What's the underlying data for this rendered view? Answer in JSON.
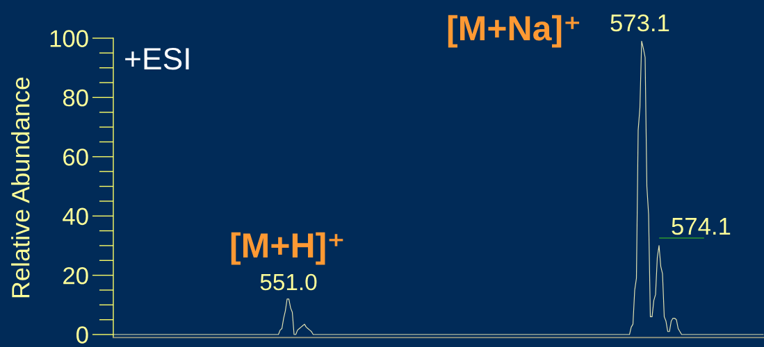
{
  "chart_data": {
    "type": "line",
    "ylabel": "Relative Abundance",
    "categories": [
      null,
      null,
      null,
      null,
      null,
      null,
      null,
      null,
      null,
      null,
      null,
      null,
      null,
      null,
      null,
      null,
      null,
      null,
      null,
      null,
      null,
      null,
      null,
      null,
      null,
      null,
      null,
      null,
      null,
      null,
      null,
      null,
      null,
      null,
      null,
      null,
      null,
      null,
      null,
      null,
      null,
      null,
      null,
      null,
      null,
      null,
      null,
      null,
      null,
      null,
      null,
      null,
      null,
      null,
      null,
      null,
      null,
      null,
      null,
      null,
      null,
      null,
      null,
      null,
      null,
      null,
      null,
      null,
      null,
      null,
      null,
      null,
      null,
      null,
      null,
      null,
      null,
      null,
      null,
      null,
      null,
      null,
      null,
      null,
      null,
      null,
      null,
      null,
      null,
      null,
      null,
      null,
      null,
      null,
      null,
      null,
      null,
      null,
      null,
      null,
      null,
      null,
      null,
      null,
      null,
      null,
      null,
      null,
      null,
      null,
      null,
      null,
      null,
      null,
      null,
      null,
      null,
      null,
      null,
      null,
      null,
      null,
      null,
      null,
      null,
      null,
      null,
      null,
      null,
      null,
      null,
      null,
      null,
      null,
      null,
      null,
      null,
      null,
      null,
      null,
      null,
      null,
      null,
      null,
      null,
      null,
      null,
      null,
      null,
      null,
      null,
      null,
      null,
      null,
      null,
      null,
      null,
      null,
      null,
      null,
      null,
      null,
      null,
      null,
      null,
      null,
      null,
      null,
      null,
      null,
      null,
      null,
      null,
      null,
      null,
      null,
      null,
      null,
      null,
      null,
      null,
      null,
      null,
      null,
      null,
      null,
      null,
      null,
      null,
      null,
      null,
      null,
      null,
      null,
      null,
      null,
      null,
      null,
      null,
      null,
      null,
      null,
      null,
      null,
      null,
      null,
      null,
      null,
      null,
      null,
      null,
      null,
      null,
      null,
      null,
      null,
      null,
      null,
      null,
      null,
      null,
      null,
      null,
      null,
      null,
      null,
      null,
      null,
      null,
      null,
      null,
      null,
      null,
      null,
      null,
      null,
      null,
      null,
      null,
      null,
      null,
      null,
      null,
      null,
      null,
      null,
      null,
      null,
      null,
      null,
      null,
      null,
      null,
      null,
      null,
      null,
      null,
      null,
      null,
      null,
      null,
      null,
      null,
      null,
      null,
      null,
      null,
      null,
      null,
      null,
      null,
      null,
      null,
      null,
      null,
      null,
      null,
      null,
      null,
      null,
      null,
      null,
      null,
      null,
      null,
      null,
      null,
      null,
      null,
      null,
      null,
      null,
      null,
      null,
      null,
      null,
      null,
      null,
      null,
      null,
      null,
      null,
      null,
      null,
      null,
      null,
      null,
      null,
      null,
      null,
      null,
      null,
      null,
      null,
      null,
      null,
      null,
      null,
      null,
      null,
      null,
      null,
      null,
      null,
      null,
      null,
      null,
      null,
      null,
      null,
      null,
      null,
      null,
      null,
      null,
      null,
      null,
      null,
      null,
      null,
      null,
      null,
      null,
      null,
      null,
      null,
      null,
      null,
      null,
      null,
      null,
      null,
      null,
      null,
      null,
      null,
      null,
      null,
      null,
      null,
      null,
      null,
      null,
      null,
      null,
      null,
      null,
      null,
      null,
      null,
      null,
      null,
      null,
      null,
      null
    ],
    "series": [
      {
        "color": "#e2e2b2",
        "values": [
          0,
          0,
          0,
          0,
          0,
          0,
          0,
          0,
          0,
          0,
          0,
          0,
          0,
          0,
          0,
          0,
          0,
          0,
          0,
          0,
          0,
          0,
          0,
          0,
          0,
          0,
          0,
          0,
          0,
          0,
          0,
          0,
          0,
          0,
          0,
          0,
          0,
          0,
          0,
          0,
          0,
          0,
          0,
          0,
          0,
          0,
          0,
          0,
          0,
          0,
          0,
          0,
          0,
          0,
          0,
          0,
          0,
          0,
          0,
          0,
          0,
          0,
          0,
          0,
          0,
          0,
          0,
          0,
          0,
          0,
          0,
          0,
          0,
          0,
          0,
          0,
          0,
          0,
          0,
          0,
          0,
          0,
          0,
          0,
          0,
          0,
          0,
          0,
          0,
          0,
          0,
          0,
          0,
          0,
          0,
          0,
          1.5,
          2,
          5.5,
          8,
          12,
          12,
          9,
          7.5,
          0,
          0,
          1.5,
          2,
          2.5,
          3,
          3.5,
          2.5,
          2,
          1.5,
          1,
          0,
          0,
          0,
          0,
          0,
          0,
          0,
          0,
          0,
          0,
          0,
          0,
          0,
          0,
          0,
          0,
          0,
          0,
          0,
          0,
          0,
          0,
          0,
          0,
          0,
          0,
          0,
          0,
          0,
          0,
          0,
          0,
          0,
          0,
          0,
          0,
          0,
          0,
          0,
          0,
          0,
          0,
          0,
          0,
          0,
          0,
          0,
          0,
          0,
          0,
          0,
          0,
          0,
          0,
          0,
          0,
          0,
          0,
          0,
          0,
          0,
          0,
          0,
          0,
          0,
          0,
          0,
          0,
          0,
          0,
          0,
          0,
          0,
          0,
          0,
          0,
          0,
          0,
          0,
          0,
          0,
          0,
          0,
          0,
          0,
          0,
          0,
          0,
          0,
          0,
          0,
          0,
          0,
          0,
          0,
          0,
          0,
          0,
          0,
          0,
          0,
          0,
          0,
          0,
          0,
          0,
          0,
          0,
          0,
          0,
          0,
          0,
          0,
          0,
          0,
          0,
          0,
          0,
          0,
          0,
          0,
          0,
          0,
          0,
          0,
          0,
          0,
          0,
          0,
          0,
          0,
          0,
          0,
          0,
          0,
          0,
          0,
          0,
          0,
          0,
          0,
          0,
          0,
          0,
          0,
          0,
          0,
          0,
          0,
          0,
          0,
          0,
          0,
          0,
          0,
          0,
          0,
          0,
          0,
          0,
          0,
          0,
          0,
          0,
          0,
          0,
          0,
          0,
          0,
          0,
          0,
          0,
          0,
          0,
          0,
          0,
          0,
          0,
          0,
          0,
          0,
          0,
          0,
          2.5,
          3.5,
          15,
          19,
          69,
          76.5,
          99,
          96.5,
          93.5,
          50,
          40.5,
          6,
          6,
          11.5,
          13.5,
          26,
          30,
          23,
          20.5,
          6,
          4.5,
          1,
          1,
          4.5,
          5.5,
          5.5,
          5,
          2,
          1,
          0,
          0,
          0,
          0,
          0,
          0,
          0,
          0,
          0,
          0,
          0,
          0,
          0,
          0,
          0,
          0,
          0,
          0,
          0,
          0,
          0,
          0,
          0,
          0,
          0,
          0,
          0,
          0,
          0,
          0,
          0,
          0,
          0,
          0,
          0,
          0,
          0,
          0,
          0,
          0,
          0,
          0,
          0,
          0,
          0,
          0,
          0,
          0
        ]
      }
    ],
    "ylim": [
      -1,
      100
    ],
    "yticks": [
      0,
      20,
      40,
      60,
      80,
      100
    ],
    "tick_labels": "y",
    "grid": false,
    "marker": "none",
    "line_style": "solid",
    "annotations": [
      "+ESI",
      "[M+H]⁺",
      "551.0",
      "[M+Na]⁺",
      "573.1",
      "574.1"
    ]
  }
}
